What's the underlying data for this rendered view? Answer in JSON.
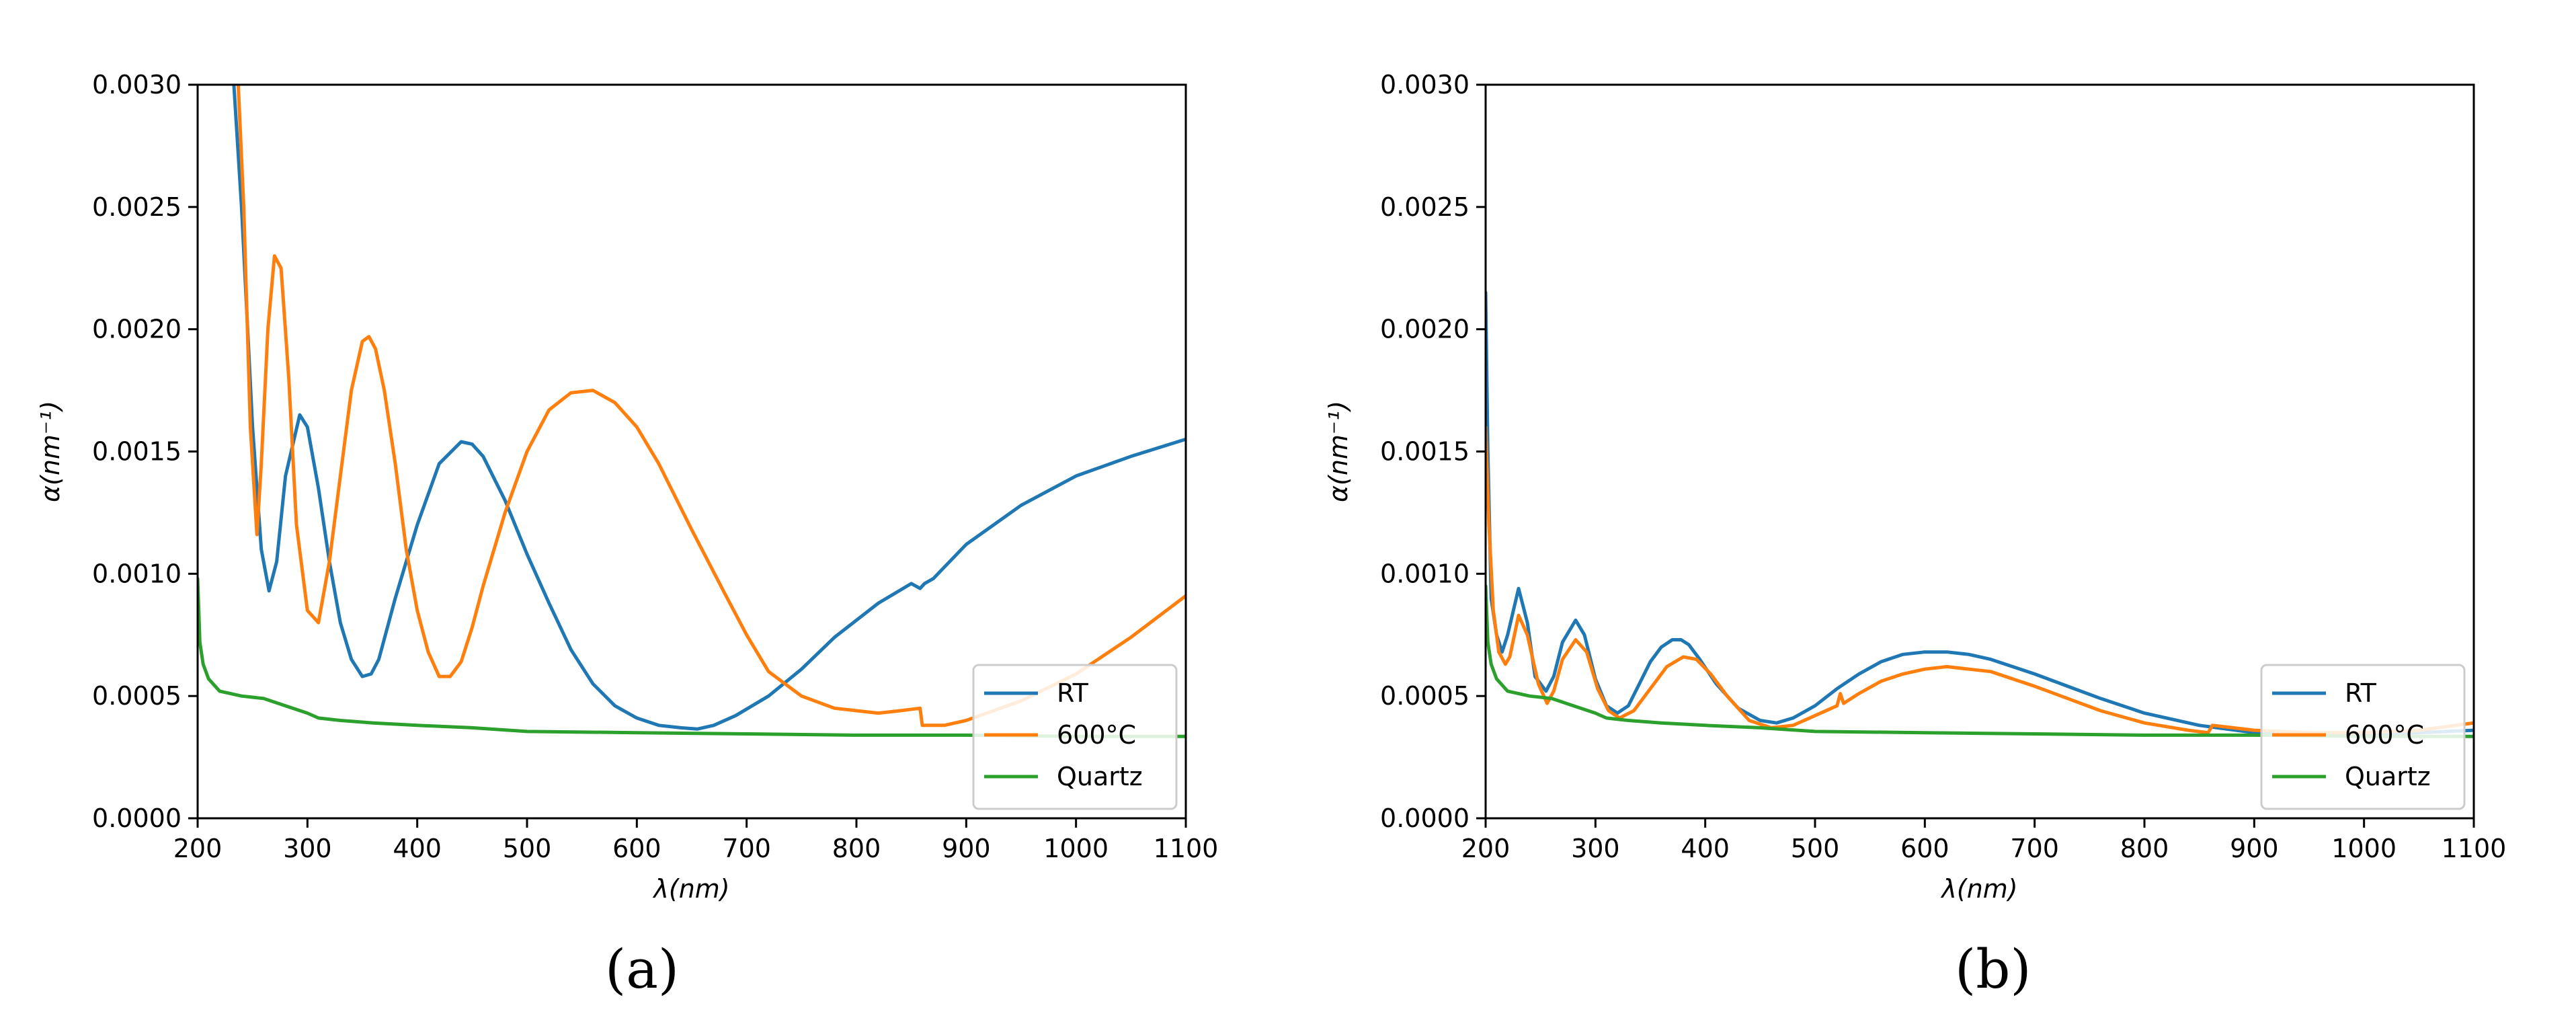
{
  "colors": {
    "RT": "#1f77b4",
    "600°C": "#ff7f0e",
    "Quartz": "#2ca02c"
  },
  "captions": {
    "a": "(a)",
    "b": "(b)"
  },
  "chart_data": [
    {
      "type": "line",
      "panel": "a",
      "title": "",
      "xlabel": "λ(nm)",
      "ylabel": "α(nm⁻¹)",
      "xlim": [
        200,
        1100
      ],
      "ylim": [
        0,
        0.003
      ],
      "xticks": [
        "200",
        "300",
        "400",
        "500",
        "600",
        "700",
        "800",
        "900",
        "1000",
        "1100"
      ],
      "yticks": [
        "0.0000",
        "0.0005",
        "0.0010",
        "0.0015",
        "0.0020",
        "0.0025",
        "0.0030"
      ],
      "grid": false,
      "legend": "lower-right",
      "series": [
        {
          "name": "RT",
          "x": [
            233,
            240,
            250,
            258,
            265,
            272,
            280,
            293,
            300,
            310,
            320,
            330,
            340,
            350,
            358,
            365,
            380,
            400,
            420,
            440,
            450,
            460,
            480,
            500,
            520,
            540,
            560,
            580,
            600,
            620,
            640,
            655,
            670,
            690,
            720,
            750,
            780,
            820,
            850,
            858,
            862,
            870,
            900,
            950,
            1000,
            1050,
            1100
          ],
          "y": [
            0.003,
            0.0025,
            0.0016,
            0.0011,
            0.00093,
            0.00105,
            0.0014,
            0.00165,
            0.0016,
            0.00135,
            0.00105,
            0.0008,
            0.00065,
            0.00058,
            0.00059,
            0.00065,
            0.0009,
            0.0012,
            0.00145,
            0.00154,
            0.00153,
            0.00148,
            0.0013,
            0.00108,
            0.00088,
            0.00069,
            0.00055,
            0.00046,
            0.00041,
            0.00038,
            0.00037,
            0.000365,
            0.00038,
            0.00042,
            0.0005,
            0.00061,
            0.00074,
            0.00088,
            0.00096,
            0.00094,
            0.00096,
            0.00098,
            0.00112,
            0.00128,
            0.0014,
            0.00148,
            0.00155
          ]
        },
        {
          "name": "600°C",
          "x": [
            237,
            242,
            248,
            254,
            258,
            264,
            270,
            276,
            283,
            290,
            300,
            310,
            320,
            330,
            340,
            350,
            356,
            362,
            370,
            380,
            390,
            400,
            410,
            420,
            430,
            440,
            450,
            460,
            480,
            500,
            520,
            540,
            560,
            580,
            600,
            620,
            650,
            680,
            700,
            720,
            750,
            780,
            800,
            820,
            840,
            858,
            860,
            880,
            900,
            950,
            1000,
            1050,
            1100
          ],
          "y": [
            0.003,
            0.0025,
            0.0016,
            0.00116,
            0.00145,
            0.002,
            0.0023,
            0.00225,
            0.0018,
            0.0012,
            0.00085,
            0.0008,
            0.00105,
            0.0014,
            0.00175,
            0.00195,
            0.00197,
            0.00192,
            0.00175,
            0.00145,
            0.0011,
            0.00085,
            0.00068,
            0.00058,
            0.00058,
            0.00064,
            0.00078,
            0.00095,
            0.00125,
            0.0015,
            0.00167,
            0.00174,
            0.00175,
            0.0017,
            0.0016,
            0.00145,
            0.00118,
            0.00092,
            0.00075,
            0.0006,
            0.0005,
            0.00045,
            0.00044,
            0.00043,
            0.00044,
            0.00045,
            0.00038,
            0.00038,
            0.0004,
            0.00048,
            0.00059,
            0.00074,
            0.00091
          ]
        },
        {
          "name": "Quartz",
          "x": [
            200,
            202,
            205,
            210,
            220,
            240,
            260,
            280,
            300,
            310,
            330,
            360,
            400,
            450,
            500,
            600,
            700,
            800,
            900,
            1000,
            1100
          ],
          "y": [
            0.00098,
            0.00072,
            0.00063,
            0.00057,
            0.00052,
            0.0005,
            0.00049,
            0.00046,
            0.00043,
            0.00041,
            0.0004,
            0.00039,
            0.00038,
            0.00037,
            0.000355,
            0.00035,
            0.000345,
            0.00034,
            0.00034,
            0.000335,
            0.000335
          ]
        }
      ]
    },
    {
      "type": "line",
      "panel": "b",
      "title": "",
      "xlabel": "λ(nm)",
      "ylabel": "α(nm⁻¹)",
      "xlim": [
        200,
        1100
      ],
      "ylim": [
        0,
        0.003
      ],
      "xticks": [
        "200",
        "300",
        "400",
        "500",
        "600",
        "700",
        "800",
        "900",
        "1000",
        "1100"
      ],
      "yticks": [
        "0.0000",
        "0.0005",
        "0.0010",
        "0.0015",
        "0.0020",
        "0.0025",
        "0.0030"
      ],
      "grid": false,
      "legend": "lower-right",
      "series": [
        {
          "name": "RT",
          "x": [
            200,
            202,
            205,
            210,
            215,
            220,
            230,
            238,
            245,
            255,
            262,
            270,
            282,
            290,
            300,
            310,
            320,
            330,
            340,
            350,
            360,
            370,
            378,
            385,
            395,
            410,
            430,
            450,
            465,
            480,
            500,
            520,
            540,
            560,
            580,
            600,
            620,
            640,
            660,
            680,
            700,
            730,
            760,
            800,
            850,
            900,
            950,
            1000,
            1050,
            1100
          ],
          "y": [
            0.00215,
            0.0015,
            0.0009,
            0.00075,
            0.00068,
            0.00075,
            0.00094,
            0.0008,
            0.00058,
            0.00052,
            0.00058,
            0.00072,
            0.00081,
            0.00075,
            0.00057,
            0.00046,
            0.00043,
            0.00046,
            0.00055,
            0.00064,
            0.0007,
            0.00073,
            0.00073,
            0.00071,
            0.00065,
            0.00055,
            0.00045,
            0.0004,
            0.00039,
            0.00041,
            0.00046,
            0.00053,
            0.00059,
            0.00064,
            0.00067,
            0.00068,
            0.00068,
            0.00067,
            0.00065,
            0.00062,
            0.00059,
            0.00054,
            0.00049,
            0.00043,
            0.00038,
            0.00035,
            0.00034,
            0.00034,
            0.00035,
            0.00036
          ]
        },
        {
          "name": "600°C",
          "x": [
            200,
            203,
            207,
            212,
            218,
            222,
            230,
            238,
            248,
            256,
            262,
            270,
            282,
            292,
            302,
            312,
            322,
            335,
            350,
            365,
            380,
            392,
            405,
            420,
            440,
            460,
            480,
            500,
            520,
            523,
            526,
            540,
            560,
            580,
            600,
            620,
            640,
            660,
            680,
            700,
            730,
            760,
            800,
            840,
            858,
            862,
            900,
            950,
            1000,
            1050,
            1100
          ],
          "y": [
            0.0016,
            0.0012,
            0.00085,
            0.00068,
            0.00063,
            0.00066,
            0.00083,
            0.00075,
            0.00055,
            0.00047,
            0.00052,
            0.00065,
            0.00073,
            0.00068,
            0.00053,
            0.00044,
            0.00041,
            0.00044,
            0.00053,
            0.00062,
            0.00066,
            0.00065,
            0.00059,
            0.0005,
            0.0004,
            0.00037,
            0.00038,
            0.00042,
            0.00046,
            0.00051,
            0.00047,
            0.00051,
            0.00056,
            0.00059,
            0.00061,
            0.00062,
            0.00061,
            0.0006,
            0.00057,
            0.00054,
            0.00049,
            0.00044,
            0.00039,
            0.00036,
            0.00035,
            0.00038,
            0.00036,
            0.00035,
            0.00035,
            0.00036,
            0.00039
          ]
        },
        {
          "name": "Quartz",
          "x": [
            200,
            202,
            205,
            210,
            220,
            240,
            260,
            280,
            300,
            310,
            330,
            360,
            400,
            450,
            500,
            600,
            700,
            800,
            900,
            1000,
            1100
          ],
          "y": [
            0.00095,
            0.00072,
            0.00063,
            0.00057,
            0.00052,
            0.0005,
            0.00049,
            0.00046,
            0.00043,
            0.00041,
            0.0004,
            0.00039,
            0.00038,
            0.00037,
            0.000355,
            0.00035,
            0.000345,
            0.00034,
            0.00034,
            0.000335,
            0.000335
          ]
        }
      ]
    }
  ]
}
